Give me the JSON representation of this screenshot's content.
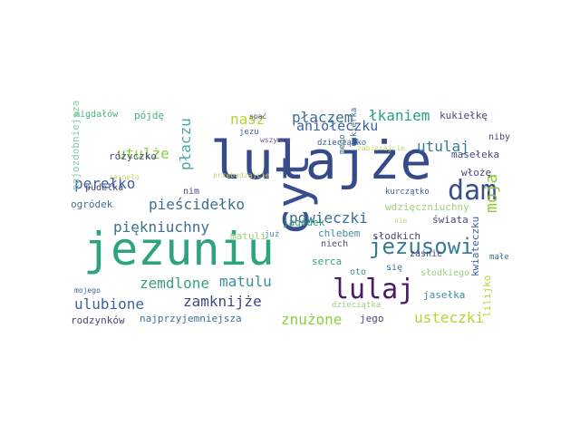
{
  "colors": {
    "dark_navy": "#3b4e8c",
    "teal": "#2a9c8f",
    "green": "#3fb57a",
    "lime": "#b5d52e",
    "purple": "#4b1d6b",
    "slate": "#3f6f8f",
    "blue": "#3e61a0",
    "light_green": "#8ad13c"
  },
  "words": [
    {
      "text": "lulajże",
      "color": "#364a8a"
    },
    {
      "text": "jezuniu",
      "color": "#2ea37f"
    },
    {
      "text": "cyt",
      "color": "#3a4e8e"
    },
    {
      "text": "lulaj",
      "color": "#4a1a66"
    },
    {
      "text": "dam",
      "color": "#3a4e8e"
    },
    {
      "text": "jezusowi",
      "color": "#357b97"
    },
    {
      "text": "moja",
      "color": "#8ec83c"
    },
    {
      "text": "płaczem",
      "color": "#3b6f93"
    },
    {
      "text": "łkaniem",
      "color": "#2a9c8f"
    },
    {
      "text": "aniołeczku",
      "color": "#3e61a0"
    },
    {
      "text": "nasz",
      "color": "#b5d52e"
    },
    {
      "text": "płaczu",
      "color": "#4aa9a0"
    },
    {
      "text": "utulże",
      "color": "#8ad13c"
    },
    {
      "text": "utulaj",
      "color": "#357b97"
    },
    {
      "text": "perełko",
      "color": "#3e61a0"
    },
    {
      "text": "pieścidełko",
      "color": "#3b6f93"
    },
    {
      "text": "powieczki",
      "color": "#3b6f93"
    },
    {
      "text": "piękniuchny",
      "color": "#3b6f93"
    },
    {
      "text": "zemdlone",
      "color": "#3aa07a"
    },
    {
      "text": "matulu",
      "color": "#3f8f9a"
    },
    {
      "text": "ulubione",
      "color": "#3e61a0"
    },
    {
      "text": "zamknijże",
      "color": "#3b4a80"
    },
    {
      "text": "znużone",
      "color": "#8ad13c"
    },
    {
      "text": "usteczki",
      "color": "#b5d52e"
    },
    {
      "text": "najprzyjemniejsza",
      "color": "#3b6f93"
    },
    {
      "text": "jego",
      "color": "#4a4a7a"
    },
    {
      "text": "rodzynków",
      "color": "#4a4a7a"
    },
    {
      "text": "ogródek",
      "color": "#3f6f8f"
    },
    {
      "text": "różyczko",
      "color": "#4a4a7a"
    },
    {
      "text": "pójdę",
      "color": "#3fb57a"
    },
    {
      "text": "migdałów",
      "color": "#3fb57a"
    },
    {
      "text": "najozdobniejsza",
      "color": "#7fcfa0"
    },
    {
      "text": "pudełka",
      "color": "#4a4a7a"
    },
    {
      "text": "zasnęło",
      "color": "#c8d870"
    },
    {
      "text": "nim",
      "color": "#4a4a7a"
    },
    {
      "text": "jagódek",
      "color": "#3aa07a"
    },
    {
      "text": "matuli",
      "color": "#9ad17a"
    },
    {
      "text": "już",
      "color": "#3f8f9a"
    },
    {
      "text": "mojego",
      "color": "#3e61a0"
    },
    {
      "text": "spać",
      "color": "#4a4a7a"
    },
    {
      "text": "jezu",
      "color": "#3e61a0"
    },
    {
      "text": "wszyscy",
      "color": "#7a5a9a"
    },
    {
      "text": "dzieciątko",
      "color": "#3e61a0"
    },
    {
      "text": "zabierajcie",
      "color": "#c8d870"
    },
    {
      "text": "przebudzajcie",
      "color": "#c8d870"
    },
    {
      "text": "mego",
      "color": "#3f6f8f"
    },
    {
      "text": "cukierka",
      "color": "#3f6f8f"
    },
    {
      "text": "kurczątko",
      "color": "#3e61a0"
    },
    {
      "text": "kukiełkę",
      "color": "#4a4a7a"
    },
    {
      "text": "niby",
      "color": "#4a4a7a"
    },
    {
      "text": "masełeka",
      "color": "#4a4a7a"
    },
    {
      "text": "włożę",
      "color": "#4a4a7a"
    },
    {
      "text": "wdzięczniuchny",
      "color": "#9ad17a"
    },
    {
      "text": "nie",
      "color": "#c8d870"
    },
    {
      "text": "świata",
      "color": "#4a4a7a"
    },
    {
      "text": "kwiateczku",
      "color": "#3e61a0"
    },
    {
      "text": "chlebem",
      "color": "#3f8f9a"
    },
    {
      "text": "niech",
      "color": "#4a4a7a"
    },
    {
      "text": "słodkich",
      "color": "#4a4a7a"
    },
    {
      "text": "małe",
      "color": "#3f6f8f"
    },
    {
      "text": "serca",
      "color": "#3aa07a"
    },
    {
      "text": "zaśnie",
      "color": "#4a4a7a"
    },
    {
      "text": "oto",
      "color": "#3f8f9a"
    },
    {
      "text": "się",
      "color": "#3f6f8f"
    },
    {
      "text": "słodkiego",
      "color": "#9ad17a"
    },
    {
      "text": "dzieciątka",
      "color": "#9ad17a"
    },
    {
      "text": "jasełka",
      "color": "#3f8f9a"
    },
    {
      "text": "lilijko",
      "color": "#b5d52e"
    }
  ]
}
